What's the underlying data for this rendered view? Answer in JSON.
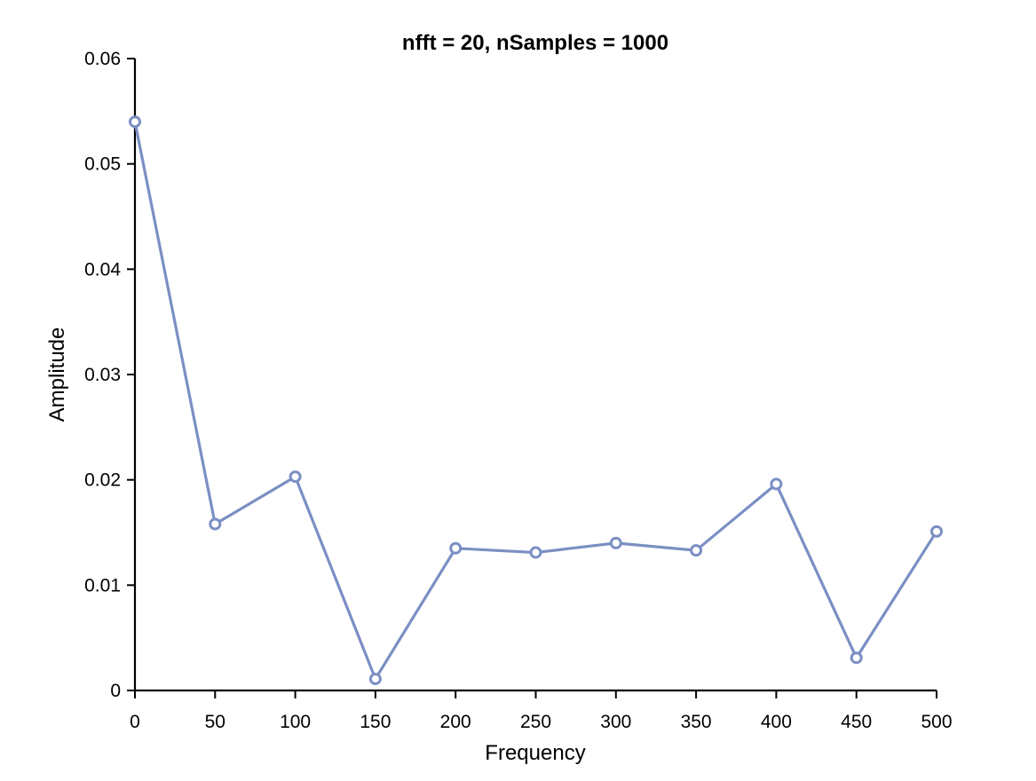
{
  "chart_data": {
    "type": "line",
    "title": "nfft = 20, nSamples = 1000",
    "xlabel": "Frequency",
    "ylabel": "Amplitude",
    "xlim": [
      0,
      500
    ],
    "ylim": [
      0,
      0.06
    ],
    "x_ticks": [
      0,
      50,
      100,
      150,
      200,
      250,
      300,
      350,
      400,
      450,
      500
    ],
    "y_ticks": [
      0,
      0.01,
      0.02,
      0.03,
      0.04,
      0.05,
      0.06
    ],
    "x_tick_labels": [
      "0",
      "50",
      "100",
      "150",
      "200",
      "250",
      "300",
      "350",
      "400",
      "450",
      "500"
    ],
    "y_tick_labels": [
      "0",
      "0.01",
      "0.02",
      "0.03",
      "0.04",
      "0.05",
      "0.06"
    ],
    "grid": false,
    "series": [
      {
        "x": [
          0,
          50,
          100,
          150,
          200,
          250,
          300,
          350,
          400,
          450,
          500
        ],
        "y": [
          0.054,
          0.0158,
          0.0203,
          0.0011,
          0.0135,
          0.0131,
          0.014,
          0.0133,
          0.0196,
          0.0031,
          0.0151
        ],
        "color": "#7b8fc4",
        "marker": "circle"
      }
    ]
  }
}
